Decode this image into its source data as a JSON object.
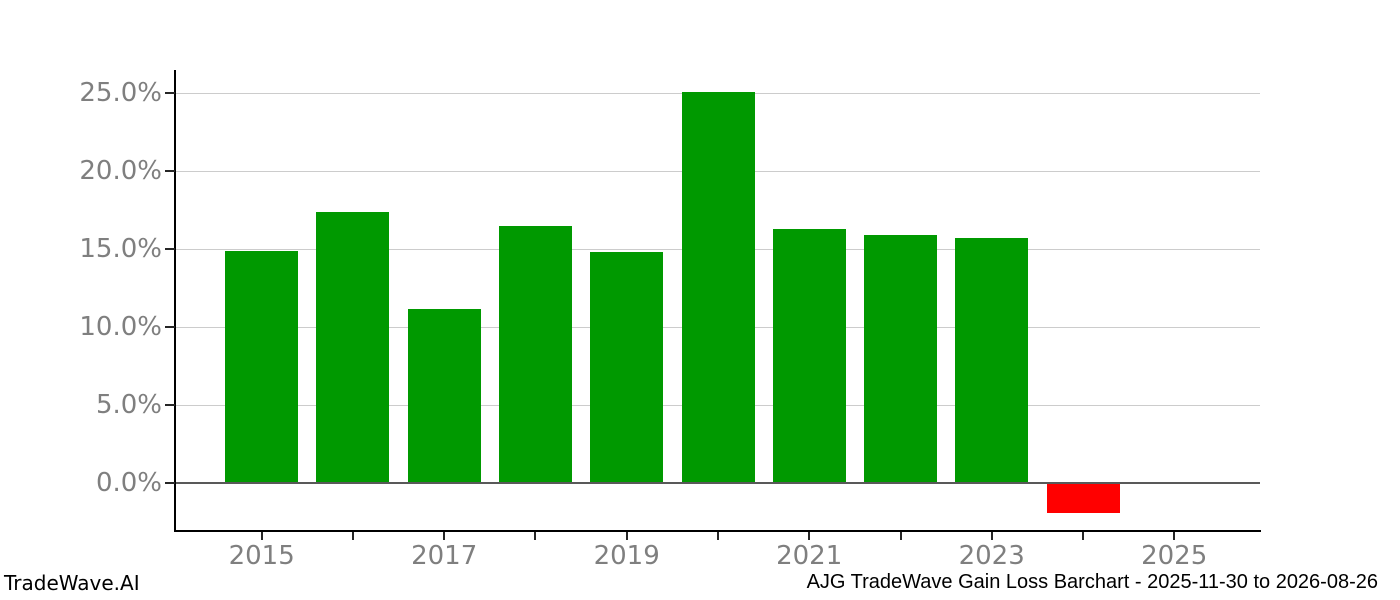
{
  "footer": {
    "left": "TradeWave.AI",
    "right": "AJG TradeWave Gain Loss Barchart - 2025-11-30 to 2026-08-26"
  },
  "colors": {
    "positive": "#009900",
    "negative": "#ff0000",
    "grid": "#cccccc",
    "zero_line": "#595959",
    "spine": "#000000",
    "tick_label": "#7f7f7f"
  },
  "chart_data": {
    "type": "bar",
    "categories": [
      "2015",
      "2016",
      "2017",
      "2018",
      "2019",
      "2020",
      "2021",
      "2022",
      "2023",
      "2024"
    ],
    "values": [
      14.9,
      17.4,
      11.2,
      16.5,
      14.8,
      25.1,
      16.3,
      15.9,
      15.7,
      -1.9
    ],
    "title": "AJG TradeWave Gain Loss Barchart - 2025-11-30 to 2026-08-26",
    "xlabel": "",
    "ylabel": "",
    "ylim": [
      -3.0,
      26.5
    ],
    "xlim": [
      2014.05,
      2025.94
    ],
    "y_ticks": [
      0,
      5,
      10,
      15,
      20,
      25
    ],
    "y_tick_labels": [
      "0.0%",
      "5.0%",
      "10.0%",
      "15.0%",
      "20.0%",
      "25.0%"
    ],
    "x_ticks": [
      2015,
      2016,
      2017,
      2018,
      2019,
      2020,
      2021,
      2022,
      2023,
      2024,
      2025
    ],
    "x_tick_labeled": [
      2015,
      2017,
      2019,
      2021,
      2023,
      2025
    ],
    "grid": true,
    "legend": null,
    "bar_width_years": 0.8
  }
}
